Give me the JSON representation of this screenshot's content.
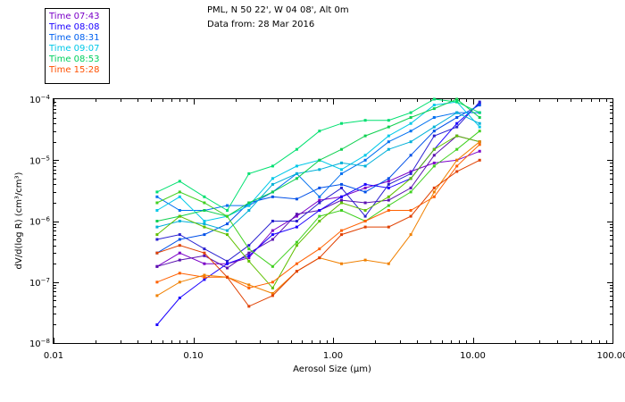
{
  "chart_data": {
    "type": "line",
    "title_lines": [
      "PML, N 50 22', W 04 08', Alt 0m",
      "Data from: 28 Mar 2016"
    ],
    "xlabel": "Aerosol Size (μm)",
    "ylabel": "dV/d(log R) (cm³/cm³)",
    "x_scale": "log",
    "y_scale": "log",
    "xlim": [
      0.01,
      100
    ],
    "ylim": [
      1e-08,
      0.0001
    ],
    "x_ticks": [
      {
        "value": 0.01,
        "label": "0.01"
      },
      {
        "value": 0.1,
        "label": "0.10"
      },
      {
        "value": 1,
        "label": "1.00"
      },
      {
        "value": 10,
        "label": "10.00"
      },
      {
        "value": 100,
        "label": "100.00"
      }
    ],
    "y_ticks": [
      {
        "value": 1e-08,
        "base": "10",
        "exp": "−8"
      },
      {
        "value": 1e-07,
        "base": "10",
        "exp": "−7"
      },
      {
        "value": 1e-06,
        "base": "10",
        "exp": "−6"
      },
      {
        "value": 1e-05,
        "base": "10",
        "exp": "−5"
      },
      {
        "value": 0.0001,
        "base": "10",
        "exp": "−4"
      }
    ],
    "legend_position": "top-left",
    "x": [
      0.055,
      0.08,
      0.12,
      0.175,
      0.25,
      0.37,
      0.55,
      0.8,
      1.15,
      1.7,
      2.5,
      3.6,
      5.3,
      7.7,
      11.2
    ],
    "series": [
      {
        "name": "Time 07:43",
        "color": "#7a00c8",
        "values": [
          1.8e-07,
          3e-07,
          2e-07,
          2e-07,
          2.5e-07,
          7e-07,
          1.2e-06,
          2.2e-06,
          2.5e-06,
          3.5e-06,
          4.5e-06,
          6.5e-06,
          9e-06,
          1e-05,
          1.4e-05
        ]
      },
      {
        "name": "Time 07:43",
        "color": "#5a10b0",
        "values": [
          1.8e-07,
          2.3e-07,
          2.7e-07,
          1.7e-07,
          3e-07,
          5e-07,
          1.3e-06,
          1.5e-06,
          2.2e-06,
          2e-06,
          2.2e-06,
          3.5e-06,
          1.2e-05,
          2.5e-05,
          2e-05
        ]
      },
      {
        "name": "Time 08:08",
        "color": "#1a00ff",
        "values": [
          2e-08,
          5.5e-08,
          1.1e-07,
          2e-07,
          2.7e-07,
          6e-07,
          8e-07,
          1.5e-06,
          2.5e-06,
          4e-06,
          3.5e-06,
          5e-06,
          1.5e-05,
          4e-05,
          8.5e-05
        ]
      },
      {
        "name": "Time 08:08",
        "color": "#2a20d0",
        "values": [
          5e-07,
          6e-07,
          3.5e-07,
          2.2e-07,
          4e-07,
          1e-06,
          1e-06,
          2e-06,
          3.5e-06,
          1.2e-06,
          4e-06,
          6e-06,
          2.5e-05,
          3.5e-05,
          9e-05
        ]
      },
      {
        "name": "Time 08:31",
        "color": "#0050e8",
        "values": [
          3e-07,
          5e-07,
          6e-07,
          9e-07,
          2e-06,
          2.5e-06,
          2.3e-06,
          3.5e-06,
          4e-06,
          3e-06,
          5e-06,
          1.2e-05,
          3e-05,
          5e-05,
          8e-05
        ]
      },
      {
        "name": "Time 08:31",
        "color": "#0070f0",
        "values": [
          2.5e-06,
          1.5e-06,
          1.5e-06,
          1.8e-06,
          1.8e-06,
          3e-06,
          6e-06,
          2.5e-06,
          6e-06,
          1e-05,
          2e-05,
          3e-05,
          5e-05,
          6e-05,
          6e-05
        ]
      },
      {
        "name": "Time 09:07",
        "color": "#00c8e8",
        "values": [
          1.5e-06,
          2.5e-06,
          1e-06,
          1.2e-06,
          1.8e-06,
          5e-06,
          8e-06,
          1e-05,
          7e-06,
          1.2e-05,
          2.5e-05,
          4e-05,
          8e-05,
          9e-05,
          3.5e-05
        ]
      },
      {
        "name": "Time 09:07",
        "color": "#00b0d8",
        "values": [
          8e-07,
          1e-06,
          9e-07,
          7e-07,
          1.5e-06,
          4e-06,
          6e-06,
          7e-06,
          9e-06,
          8e-06,
          1.5e-05,
          2e-05,
          3.5e-05,
          6e-05,
          4e-05
        ]
      },
      {
        "name": "Time 08:53",
        "color": "#00e070",
        "values": [
          3e-06,
          4.5e-06,
          2.5e-06,
          1.5e-06,
          6e-06,
          8e-06,
          1.5e-05,
          3e-05,
          4e-05,
          4.5e-05,
          4.5e-05,
          6e-05,
          0.0001,
          9e-05,
          6e-05
        ]
      },
      {
        "name": "Time 08:53",
        "color": "#10d050",
        "values": [
          1e-06,
          1.2e-06,
          1.5e-06,
          1.2e-06,
          2e-06,
          3e-06,
          5e-06,
          1e-05,
          1.5e-05,
          2.5e-05,
          3.5e-05,
          5e-05,
          7e-05,
          0.0001,
          5e-05
        ]
      },
      {
        "name": "Time 08:53",
        "color": "#40d020",
        "values": [
          2e-06,
          3e-06,
          2e-06,
          1.2e-06,
          3.5e-07,
          1.8e-07,
          4.5e-07,
          1.2e-06,
          1.5e-06,
          1e-06,
          1.8e-06,
          3e-06,
          8e-06,
          1.5e-05,
          3e-05
        ]
      },
      {
        "name": "Time 08:53",
        "color": "#60c000",
        "values": [
          6e-07,
          1.2e-06,
          8e-07,
          6e-07,
          2.2e-07,
          8e-08,
          4e-07,
          1e-06,
          2e-06,
          1.5e-06,
          2.5e-06,
          5e-06,
          1.5e-05,
          2.5e-05,
          2e-05
        ]
      },
      {
        "name": "Time 15:28",
        "color": "#ff6000",
        "values": [
          1e-07,
          1.4e-07,
          1.2e-07,
          1.2e-07,
          8e-08,
          1e-07,
          2e-07,
          3.5e-07,
          7e-07,
          1e-06,
          1.5e-06,
          1.5e-06,
          2.5e-06,
          8e-06,
          1.8e-05
        ]
      },
      {
        "name": "Time 15:28",
        "color": "#f08000",
        "values": [
          6e-08,
          1e-07,
          1.3e-07,
          1.2e-07,
          9e-08,
          6.5e-08,
          1.5e-07,
          2.5e-07,
          2e-07,
          2.3e-07,
          2e-07,
          6e-07,
          3e-06,
          1e-05,
          2e-05
        ]
      },
      {
        "name": "Time 15:28",
        "color": "#e04000",
        "values": [
          3e-07,
          4e-07,
          3e-07,
          1.2e-07,
          4e-08,
          6e-08,
          1.5e-07,
          2.5e-07,
          6e-07,
          8e-07,
          8e-07,
          1.2e-06,
          3.5e-06,
          6.5e-06,
          1e-05
        ]
      }
    ],
    "legend": [
      {
        "label": "Time 07:43",
        "color": "#7a00c8"
      },
      {
        "label": "Time 08:08",
        "color": "#1a00ff"
      },
      {
        "label": "Time 08:31",
        "color": "#0060f0"
      },
      {
        "label": "Time 09:07",
        "color": "#00c8e8"
      },
      {
        "label": "Time 08:53",
        "color": "#00d060"
      },
      {
        "label": "Time 15:28",
        "color": "#ff5000"
      }
    ]
  }
}
